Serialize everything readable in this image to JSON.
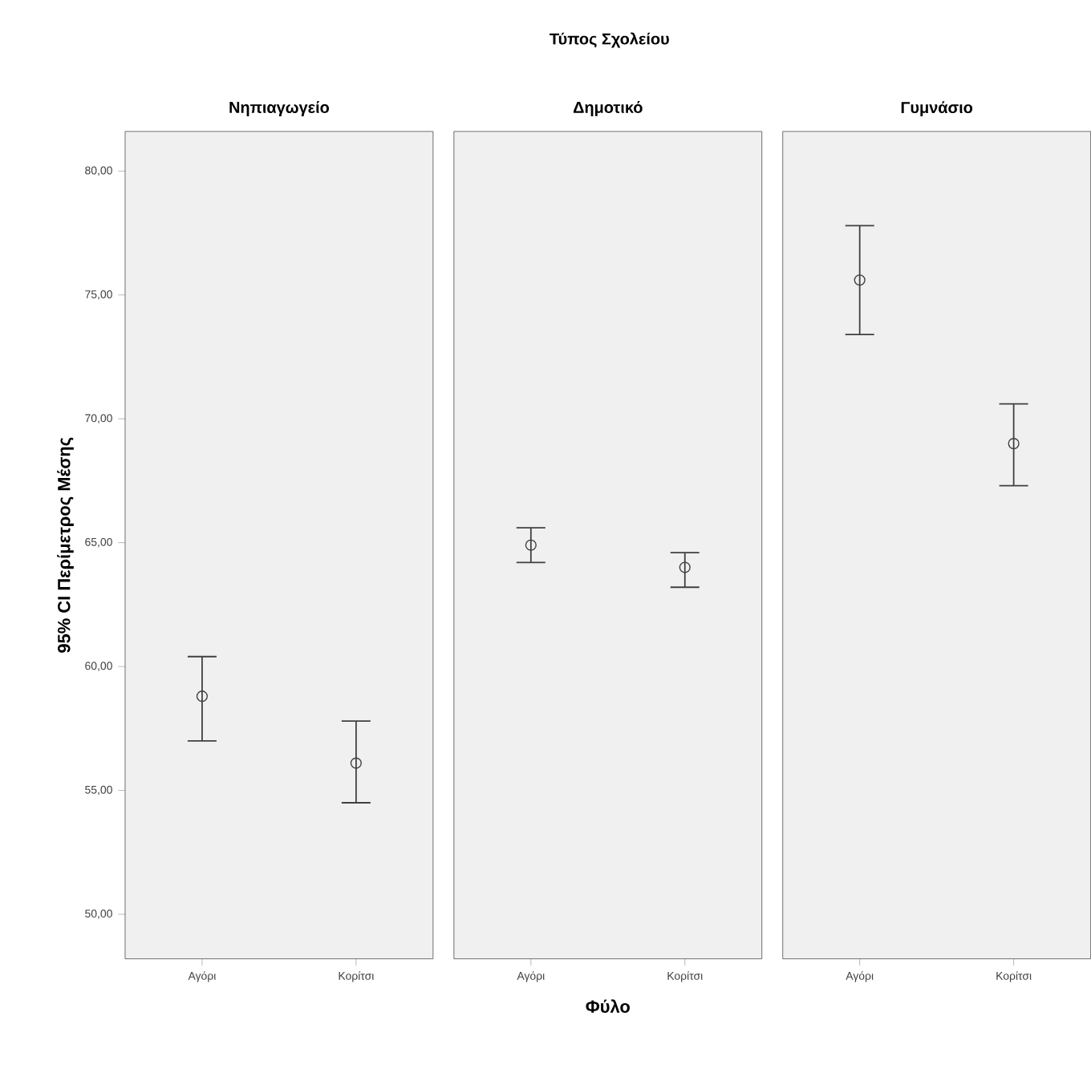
{
  "chart_data": [
    {
      "type": "scatter",
      "title": "Νηπιαγωγείο",
      "annotations": [
        "Τύπος Σχολείου"
      ],
      "ylabel": "95% CI Περίμετρος Μέσης",
      "categories": [
        "Αγόρι",
        "Κορίτσι"
      ],
      "values": [
        58.8,
        56.1
      ],
      "errors": [
        [
          57.0,
          60.4
        ],
        [
          54.5,
          57.8
        ]
      ],
      "color": "#404040",
      "marker": "circle",
      "ylim": [
        48.2,
        81.6
      ],
      "yticks": [
        {
          "value": 50,
          "label": "50,00"
        },
        {
          "value": 55,
          "label": "55,00"
        },
        {
          "value": 60,
          "label": "60,00"
        },
        {
          "value": 65,
          "label": "65,00"
        },
        {
          "value": 70,
          "label": "70,00"
        },
        {
          "value": 75,
          "label": "75,00"
        },
        {
          "value": 80,
          "label": "80,00"
        }
      ]
    },
    {
      "type": "scatter",
      "title": "Δημοτικό",
      "xlabel": "Φύλο",
      "categories": [
        "Αγόρι",
        "Κορίτσι"
      ],
      "values": [
        64.9,
        64.0
      ],
      "errors": [
        [
          64.2,
          65.6
        ],
        [
          63.2,
          64.6
        ]
      ],
      "color": "#404040",
      "marker": "circle",
      "ylim": [
        48.2,
        81.6
      ],
      "tick_labels": "x"
    },
    {
      "type": "scatter",
      "title": "Γυμνάσιο",
      "categories": [
        "Αγόρι",
        "Κορίτσι"
      ],
      "values": [
        75.6,
        69.0
      ],
      "errors": [
        [
          73.4,
          77.8
        ],
        [
          67.3,
          70.6
        ]
      ],
      "color": "#404040",
      "marker": "circle",
      "ylim": [
        48.2,
        81.6
      ],
      "tick_labels": "x"
    }
  ]
}
